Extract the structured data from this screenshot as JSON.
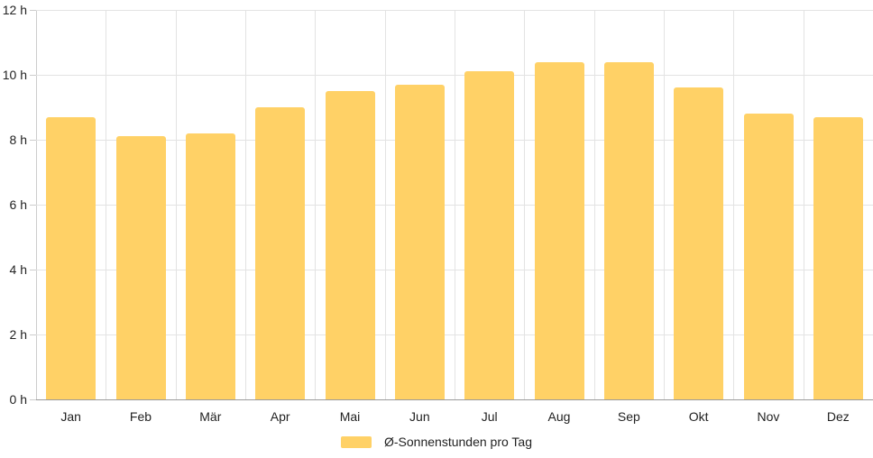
{
  "chart_data": {
    "type": "bar",
    "categories": [
      "Jan",
      "Feb",
      "Mär",
      "Apr",
      "Mai",
      "Jun",
      "Jul",
      "Aug",
      "Sep",
      "Okt",
      "Nov",
      "Dez"
    ],
    "series": [
      {
        "name": "Ø-Sonnenstunden pro Tag",
        "values": [
          8.7,
          8.1,
          8.2,
          9.0,
          9.5,
          9.7,
          10.1,
          10.4,
          10.4,
          9.6,
          8.8,
          8.7
        ]
      }
    ],
    "unit": "h",
    "ylim": [
      0,
      12
    ],
    "ytick_step": 2,
    "ytick_labels": [
      "0 h",
      "2 h",
      "4 h",
      "6 h",
      "8 h",
      "10 h",
      "12 h"
    ],
    "grid": true,
    "legend_position": "bottom",
    "colors": {
      "bar": "#FFD166",
      "grid": "#e3e3e3",
      "axis_line": "#cccccc",
      "baseline": "#9a9a9a",
      "text": "#222222"
    }
  }
}
